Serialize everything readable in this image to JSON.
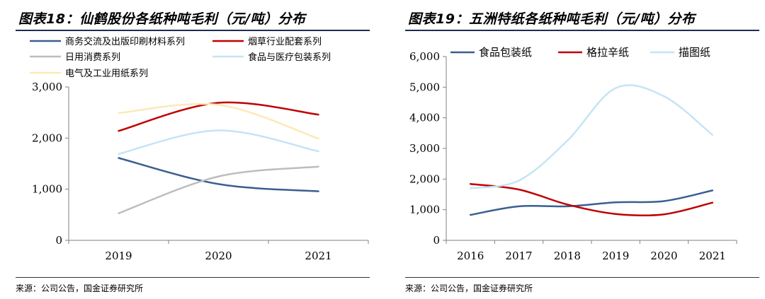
{
  "left": {
    "title": "图表18：仙鹤股份各纸种吨毛利（元/吨）分布",
    "source": "来源：公司公告，国金证券研究所"
  },
  "right": {
    "title": "图表19：五洲特纸各纸种吨毛利（元/吨）分布",
    "source": "来源：公司公告，国金证券研究所"
  },
  "chart_data": [
    {
      "type": "line",
      "title": "图表18：仙鹤股份各纸种吨毛利（元/吨）分布",
      "x": [
        "2019",
        "2020",
        "2021"
      ],
      "ylim": [
        0,
        3000
      ],
      "yticks": [
        0,
        1000,
        2000,
        3000
      ],
      "ytick_labels": [
        "0",
        "1,000",
        "2,000",
        "3,000"
      ],
      "grid": false,
      "legend": "top",
      "series": [
        {
          "name": "商务交流及出版印刷材料系列",
          "color": "#3a5f8f",
          "values": [
            1610,
            1100,
            960
          ]
        },
        {
          "name": "烟草行业配套系列",
          "color": "#c00000",
          "values": [
            2140,
            2690,
            2460
          ]
        },
        {
          "name": "日用消费系列",
          "color": "#bdbdbd",
          "values": [
            530,
            1250,
            1440
          ]
        },
        {
          "name": "食品与医疗包装系列",
          "color": "#c5e4f5",
          "values": [
            1690,
            2150,
            1740
          ]
        },
        {
          "name": "电气及工业用纸系列",
          "color": "#fde9b8",
          "values": [
            2490,
            2650,
            1990
          ]
        }
      ]
    },
    {
      "type": "line",
      "title": "图表19：五洲特纸各纸种吨毛利（元/吨）分布",
      "x": [
        "2016",
        "2017",
        "2018",
        "2019",
        "2020",
        "2021"
      ],
      "ylim": [
        0,
        6000
      ],
      "yticks": [
        0,
        1000,
        2000,
        3000,
        4000,
        5000,
        6000
      ],
      "ytick_labels": [
        "0",
        "1,000",
        "2,000",
        "3,000",
        "4,000",
        "5,000",
        "6,000"
      ],
      "grid": false,
      "legend": "top",
      "series": [
        {
          "name": "食品包装纸",
          "color": "#3a5f8f",
          "values": [
            830,
            1110,
            1110,
            1240,
            1280,
            1630
          ]
        },
        {
          "name": "格拉辛纸",
          "color": "#c00000",
          "values": [
            1840,
            1660,
            1170,
            860,
            850,
            1230
          ]
        },
        {
          "name": "描图纸",
          "color": "#c5e4f5",
          "values": [
            1700,
            1950,
            3250,
            4970,
            4700,
            3440
          ]
        }
      ]
    }
  ]
}
